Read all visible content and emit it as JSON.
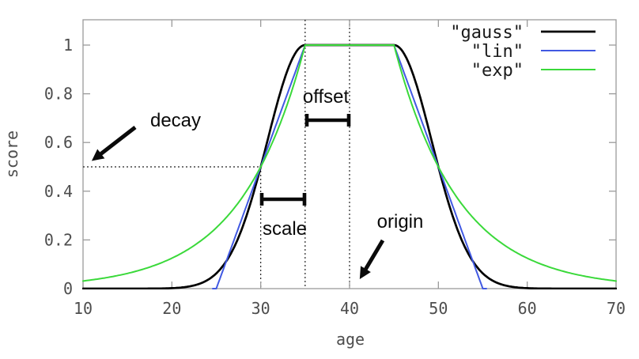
{
  "chart_data": {
    "type": "line",
    "title": "",
    "xlabel": "age",
    "ylabel": "score",
    "xlim": [
      10,
      70
    ],
    "ylim": [
      0,
      1.1
    ],
    "x_ticks": [
      10,
      20,
      30,
      40,
      50,
      60,
      70
    ],
    "y_ticks": [
      0,
      0.2,
      0.4,
      0.6,
      0.8,
      1
    ],
    "grid": false,
    "legend_position": "top-right-inside",
    "axis_color": "#9a9a9a",
    "tick_label_color": "#4d4d4d",
    "decay_params": {
      "origin": 40,
      "offset": 5,
      "scale": 5,
      "decay": 0.5
    },
    "series": [
      {
        "name": "\"gauss\"",
        "fn": "gauss",
        "color": "#000000",
        "width": 2.7
      },
      {
        "name": "\"lin\"",
        "fn": "lin",
        "color": "#4159e2",
        "width": 2.0
      },
      {
        "name": "\"exp\"",
        "fn": "exp",
        "color": "#3ad93a",
        "width": 2.0
      }
    ],
    "key_points": {
      "flat_top_range_age": [
        35,
        45
      ],
      "all_curves_cross": [
        {
          "age": 30,
          "score": 0.5
        },
        {
          "age": 50,
          "score": 0.5
        }
      ],
      "lin_reaches_zero_at_age": [
        25,
        55
      ],
      "exp_value_at_range_edges": 0.03
    },
    "guides": {
      "horizontal_at_score": 0.5,
      "vertical_at_ages": [
        30,
        35,
        40
      ]
    },
    "annotations": [
      {
        "label": "decay"
      },
      {
        "label": "offset"
      },
      {
        "label": "scale"
      },
      {
        "label": "origin"
      }
    ]
  }
}
